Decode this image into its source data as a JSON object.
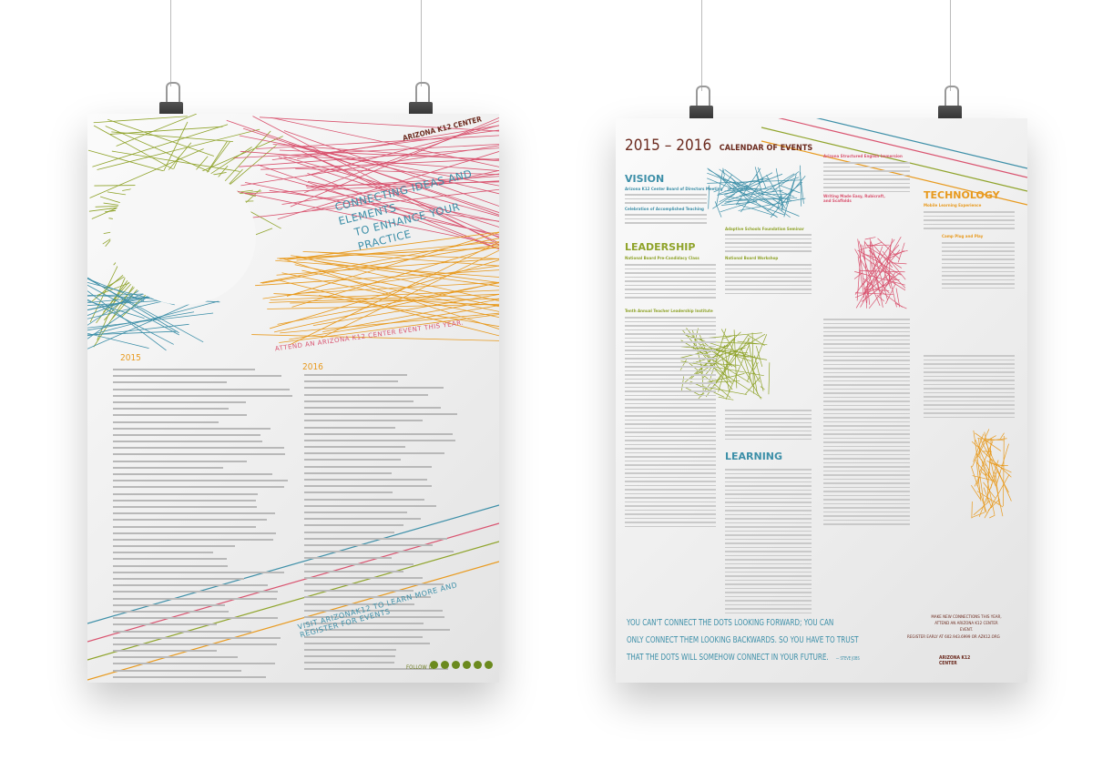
{
  "left_poster": {
    "logo": "ARIZONA K12 CENTER",
    "headline_line1": "CONNECTING IDEAS AND ELEMENTS",
    "headline_line2": "TO ENHANCE YOUR PRACTICE",
    "tagline": "ATTEND AN ARIZONA K12 CENTER EVENT THIS YEAR.",
    "year_1": "2015",
    "year_2": "2016",
    "visit": "VISIT ARIZONAK12 TO LEARN MORE AND REGISTER FOR EVENTS",
    "follow_us": "FOLLOW US",
    "social_icons": [
      "facebook-icon",
      "twitter-icon",
      "google-plus-icon",
      "instagram-icon",
      "linkedin-icon",
      "pinterest-icon"
    ]
  },
  "right_poster": {
    "title_years": "2015 – 2016",
    "title_text": "CALENDAR OF EVENTS",
    "sections": {
      "vision": "VISION",
      "leadership": "LEADERSHIP",
      "learning": "LEARNING",
      "technology": "TECHNOLOGY"
    },
    "event_headings": {
      "vision_1": "Arizona K12 Center Board of Directors Meeting",
      "vision_2": "Celebration of Accomplished Teaching",
      "leadership_1": "National Board Pre-Candidacy Class",
      "leadership_2": "Tenth Annual Teacher Leadership Institute",
      "leadership_3": "National Board Workshop",
      "middle_1": "Adaptive Schools Foundation Seminar",
      "right_1": "Arizona Structured English Immersion",
      "right_2": "Writing Made Easy, Rubicraft, and Scaffolds",
      "tech_1": "Mobile Learning Experience",
      "tech_2": "Camp Plug and Play"
    },
    "quote_line1": "YOU CAN'T CONNECT THE DOTS LOOKING FORWARD; YOU CAN",
    "quote_line2": "ONLY CONNECT THEM LOOKING BACKWARDS. SO YOU HAVE TO TRUST",
    "quote_line3": "THAT THE DOTS WILL SOMEHOW CONNECT IN YOUR FUTURE.",
    "quote_author": "— STEVE JOBS",
    "cta_line1": "MAKE NEW CONNECTIONS THIS YEAR,",
    "cta_line2": "ATTEND AN ARIZONA K12 CENTER EVENT.",
    "register": "REGISTER EARLY AT 602.943.6999 OR AZK12.ORG",
    "logo": "ARIZONA K12 CENTER"
  },
  "colors": {
    "green": "#8fa32a",
    "pink": "#d9536f",
    "orange": "#e89a1e",
    "blue": "#3d8fa8",
    "brown": "#6b2a1e"
  }
}
